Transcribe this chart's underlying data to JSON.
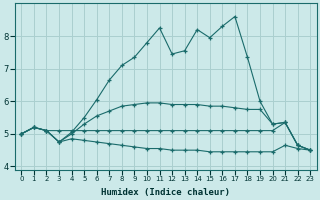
{
  "xlabel": "Humidex (Indice chaleur)",
  "background_color": "#cce9e9",
  "grid_color": "#aacfcf",
  "line_color": "#1a6b6b",
  "xlim": [
    -0.5,
    23.5
  ],
  "ylim": [
    3.9,
    9.0
  ],
  "yticks": [
    4,
    5,
    6,
    7,
    8
  ],
  "xticks": [
    0,
    1,
    2,
    3,
    4,
    5,
    6,
    7,
    8,
    9,
    10,
    11,
    12,
    13,
    14,
    15,
    16,
    17,
    18,
    19,
    20,
    21,
    22,
    23
  ],
  "line_top_x": [
    0,
    1,
    2,
    3,
    4,
    5,
    6,
    7,
    8,
    9,
    10,
    11,
    12,
    13,
    14,
    15,
    16,
    17,
    18,
    19,
    20,
    21,
    22,
    23
  ],
  "line_top_y": [
    5.0,
    5.2,
    5.1,
    4.75,
    5.05,
    5.5,
    6.05,
    6.65,
    7.1,
    7.35,
    7.8,
    8.25,
    7.45,
    7.55,
    8.2,
    7.95,
    8.3,
    8.6,
    7.35,
    6.0,
    5.3,
    5.35,
    4.65,
    4.5
  ],
  "line_mid_x": [
    0,
    1,
    2,
    3,
    4,
    5,
    6,
    7,
    8,
    9,
    10,
    11,
    12,
    13,
    14,
    15,
    16,
    17,
    18,
    19,
    20,
    21,
    22,
    23
  ],
  "line_mid_y": [
    5.0,
    5.2,
    5.1,
    4.75,
    5.0,
    5.3,
    5.55,
    5.7,
    5.85,
    5.9,
    5.95,
    5.95,
    5.9,
    5.9,
    5.9,
    5.85,
    5.85,
    5.8,
    5.75,
    5.75,
    5.3,
    5.35,
    4.65,
    4.5
  ],
  "line_flat_x": [
    0,
    1,
    2,
    3,
    4,
    5,
    6,
    7,
    8,
    9,
    10,
    11,
    12,
    13,
    14,
    15,
    16,
    17,
    18,
    19,
    20,
    21,
    22,
    23
  ],
  "line_flat_y": [
    5.0,
    5.2,
    5.1,
    5.1,
    5.1,
    5.1,
    5.1,
    5.1,
    5.1,
    5.1,
    5.1,
    5.1,
    5.1,
    5.1,
    5.1,
    5.1,
    5.1,
    5.1,
    5.1,
    5.1,
    5.1,
    5.35,
    4.65,
    4.5
  ],
  "line_bot_x": [
    0,
    1,
    2,
    3,
    4,
    5,
    6,
    7,
    8,
    9,
    10,
    11,
    12,
    13,
    14,
    15,
    16,
    17,
    18,
    19,
    20,
    21,
    22,
    23
  ],
  "line_bot_y": [
    5.0,
    5.2,
    5.1,
    4.75,
    4.85,
    4.8,
    4.75,
    4.7,
    4.65,
    4.6,
    4.55,
    4.55,
    4.5,
    4.5,
    4.5,
    4.45,
    4.45,
    4.45,
    4.45,
    4.45,
    4.45,
    4.65,
    4.55,
    4.5
  ]
}
